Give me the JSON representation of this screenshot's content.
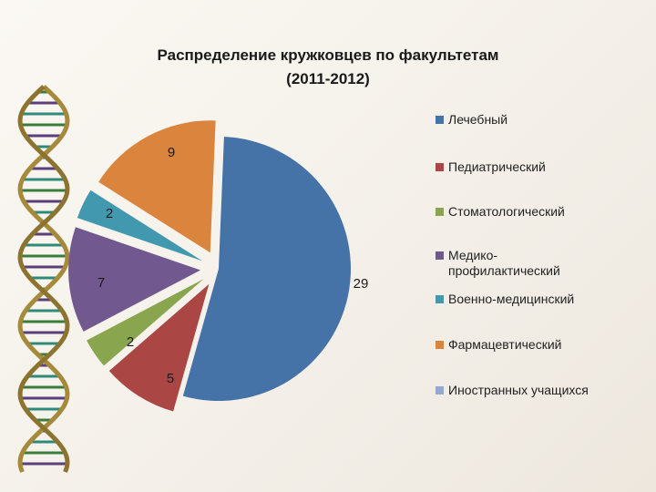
{
  "title_line1": "Распределение кружковцев по факультетам",
  "title_line2": "(2011-2012)",
  "chart_data": {
    "type": "pie",
    "title": "Распределение кружковцев по факультетам (2011-2012)",
    "legend_position": "right",
    "slices": [
      {
        "name": "Лечебный",
        "value": 29,
        "color": "#4572a7",
        "label": "29"
      },
      {
        "name": "Педиатрический",
        "value": 5,
        "color": "#aa4643",
        "label": "5"
      },
      {
        "name": "Стоматологический",
        "value": 2,
        "color": "#89a54e",
        "label": "2"
      },
      {
        "name": "Медико-\nпрофилактический",
        "value": 7,
        "color": "#71588f",
        "label": "7"
      },
      {
        "name": "Военно-медицинский",
        "value": 2,
        "color": "#4198af",
        "label": "2"
      },
      {
        "name": "Фармацевтический",
        "value": 9,
        "color": "#db843d",
        "label": "9"
      },
      {
        "name": "Иностранных учащихся",
        "value": 0,
        "color": "#93a9cf",
        "label": ""
      }
    ]
  }
}
